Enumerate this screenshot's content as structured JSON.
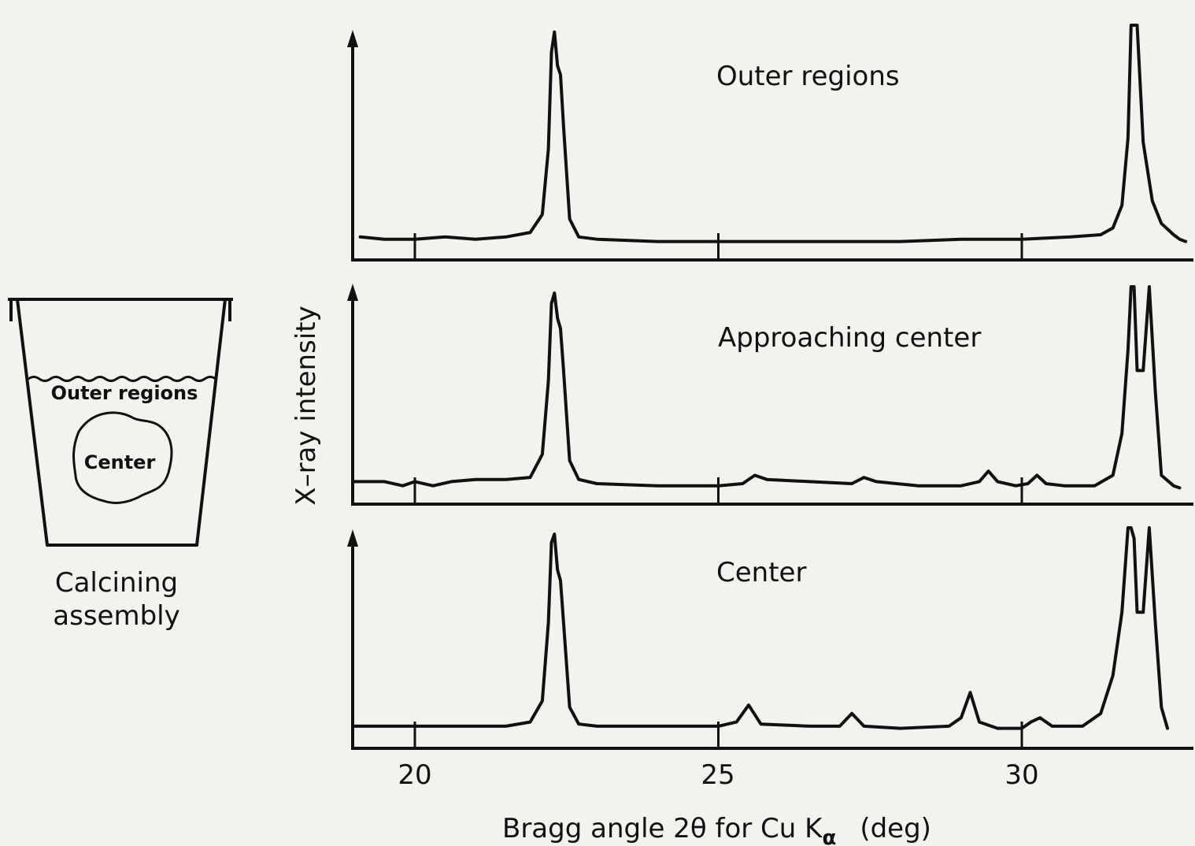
{
  "assembly": {
    "outer_label": "Outer regions",
    "center_label": "Center",
    "caption_line1": "Calcining",
    "caption_line2": "assembly"
  },
  "axes": {
    "ylabel": "X–ray intensity",
    "xlabel_main": "Bragg angle 2θ for Cu K",
    "xlabel_sub": "α",
    "xlabel_unit": "(deg)",
    "x_ticks": [
      "20",
      "25",
      "30"
    ]
  },
  "chart_data": [
    {
      "type": "line",
      "title": "Outer regions",
      "xlabel": "Bragg angle 2θ for Cu Kα (deg)",
      "ylabel": "X-ray intensity",
      "xlim": [
        19.0,
        33.0
      ],
      "ylim": [
        0,
        1
      ],
      "series": [
        {
          "x": [
            19.1,
            19.5,
            20.0,
            20.5,
            21.0,
            21.5,
            21.9,
            22.1,
            22.2,
            22.25,
            22.3,
            22.35,
            22.4,
            22.45,
            22.55,
            22.7,
            23.0,
            24.0,
            25.0,
            26.0,
            27.0,
            28.0,
            29.0,
            30.0,
            30.8,
            31.3,
            31.5,
            31.65,
            31.75,
            31.8,
            31.85,
            31.9,
            32.0,
            32.15,
            32.3,
            32.5,
            32.6,
            32.7
          ],
          "y": [
            0.06,
            0.05,
            0.05,
            0.06,
            0.05,
            0.06,
            0.08,
            0.16,
            0.45,
            0.88,
            0.97,
            0.82,
            0.78,
            0.55,
            0.14,
            0.06,
            0.05,
            0.04,
            0.04,
            0.04,
            0.04,
            0.04,
            0.05,
            0.05,
            0.06,
            0.07,
            0.1,
            0.2,
            0.5,
            1.0,
            1.0,
            1.0,
            0.48,
            0.22,
            0.12,
            0.07,
            0.05,
            0.04
          ]
        }
      ]
    },
    {
      "type": "line",
      "title": "Approaching center",
      "xlabel": "Bragg angle 2θ for Cu Kα (deg)",
      "ylabel": "X-ray intensity",
      "xlim": [
        19.0,
        33.0
      ],
      "ylim": [
        0,
        1
      ],
      "series": [
        {
          "x": [
            19.0,
            19.5,
            19.8,
            20.0,
            20.3,
            20.6,
            21.0,
            21.5,
            21.9,
            22.1,
            22.2,
            22.25,
            22.3,
            22.35,
            22.4,
            22.45,
            22.55,
            22.7,
            23.0,
            24.0,
            25.0,
            25.4,
            25.6,
            25.8,
            26.5,
            27.2,
            27.4,
            27.6,
            28.3,
            29.0,
            29.3,
            29.45,
            29.6,
            29.9,
            30.1,
            30.25,
            30.4,
            30.7,
            31.2,
            31.5,
            31.65,
            31.75,
            31.8,
            31.85,
            31.9,
            32.0,
            32.1,
            32.2,
            32.3,
            32.5,
            32.6
          ],
          "y": [
            0.07,
            0.07,
            0.05,
            0.07,
            0.05,
            0.07,
            0.08,
            0.08,
            0.09,
            0.2,
            0.55,
            0.92,
            0.97,
            0.85,
            0.8,
            0.6,
            0.17,
            0.08,
            0.06,
            0.05,
            0.05,
            0.06,
            0.1,
            0.08,
            0.07,
            0.06,
            0.09,
            0.07,
            0.05,
            0.05,
            0.07,
            0.12,
            0.07,
            0.05,
            0.06,
            0.1,
            0.06,
            0.05,
            0.05,
            0.1,
            0.3,
            0.7,
            1.0,
            1.0,
            0.6,
            0.6,
            1.0,
            0.5,
            0.1,
            0.05,
            0.04
          ]
        }
      ]
    },
    {
      "type": "line",
      "title": "Center",
      "xlabel": "Bragg angle 2θ for Cu Kα (deg)",
      "ylabel": "X-ray intensity",
      "xlim": [
        19.0,
        33.0
      ],
      "ylim": [
        0,
        1
      ],
      "series": [
        {
          "x": [
            19.0,
            19.5,
            20.0,
            20.5,
            21.0,
            21.5,
            21.9,
            22.1,
            22.2,
            22.25,
            22.3,
            22.35,
            22.4,
            22.45,
            22.55,
            22.7,
            23.0,
            24.0,
            25.0,
            25.3,
            25.5,
            25.7,
            26.5,
            27.0,
            27.2,
            27.4,
            28.0,
            28.8,
            29.0,
            29.15,
            29.3,
            29.6,
            30.0,
            30.15,
            30.3,
            30.5,
            31.0,
            31.3,
            31.5,
            31.65,
            31.75,
            31.8,
            31.85,
            31.9,
            32.0,
            32.1,
            32.2,
            32.3,
            32.4
          ],
          "y": [
            0.06,
            0.06,
            0.06,
            0.06,
            0.06,
            0.06,
            0.08,
            0.18,
            0.55,
            0.93,
            0.97,
            0.8,
            0.75,
            0.55,
            0.15,
            0.07,
            0.06,
            0.06,
            0.06,
            0.08,
            0.16,
            0.07,
            0.06,
            0.06,
            0.12,
            0.06,
            0.05,
            0.06,
            0.1,
            0.22,
            0.08,
            0.05,
            0.05,
            0.08,
            0.1,
            0.06,
            0.06,
            0.12,
            0.3,
            0.6,
            1.0,
            1.0,
            0.95,
            0.6,
            0.6,
            1.0,
            0.55,
            0.15,
            0.05
          ]
        }
      ]
    }
  ]
}
